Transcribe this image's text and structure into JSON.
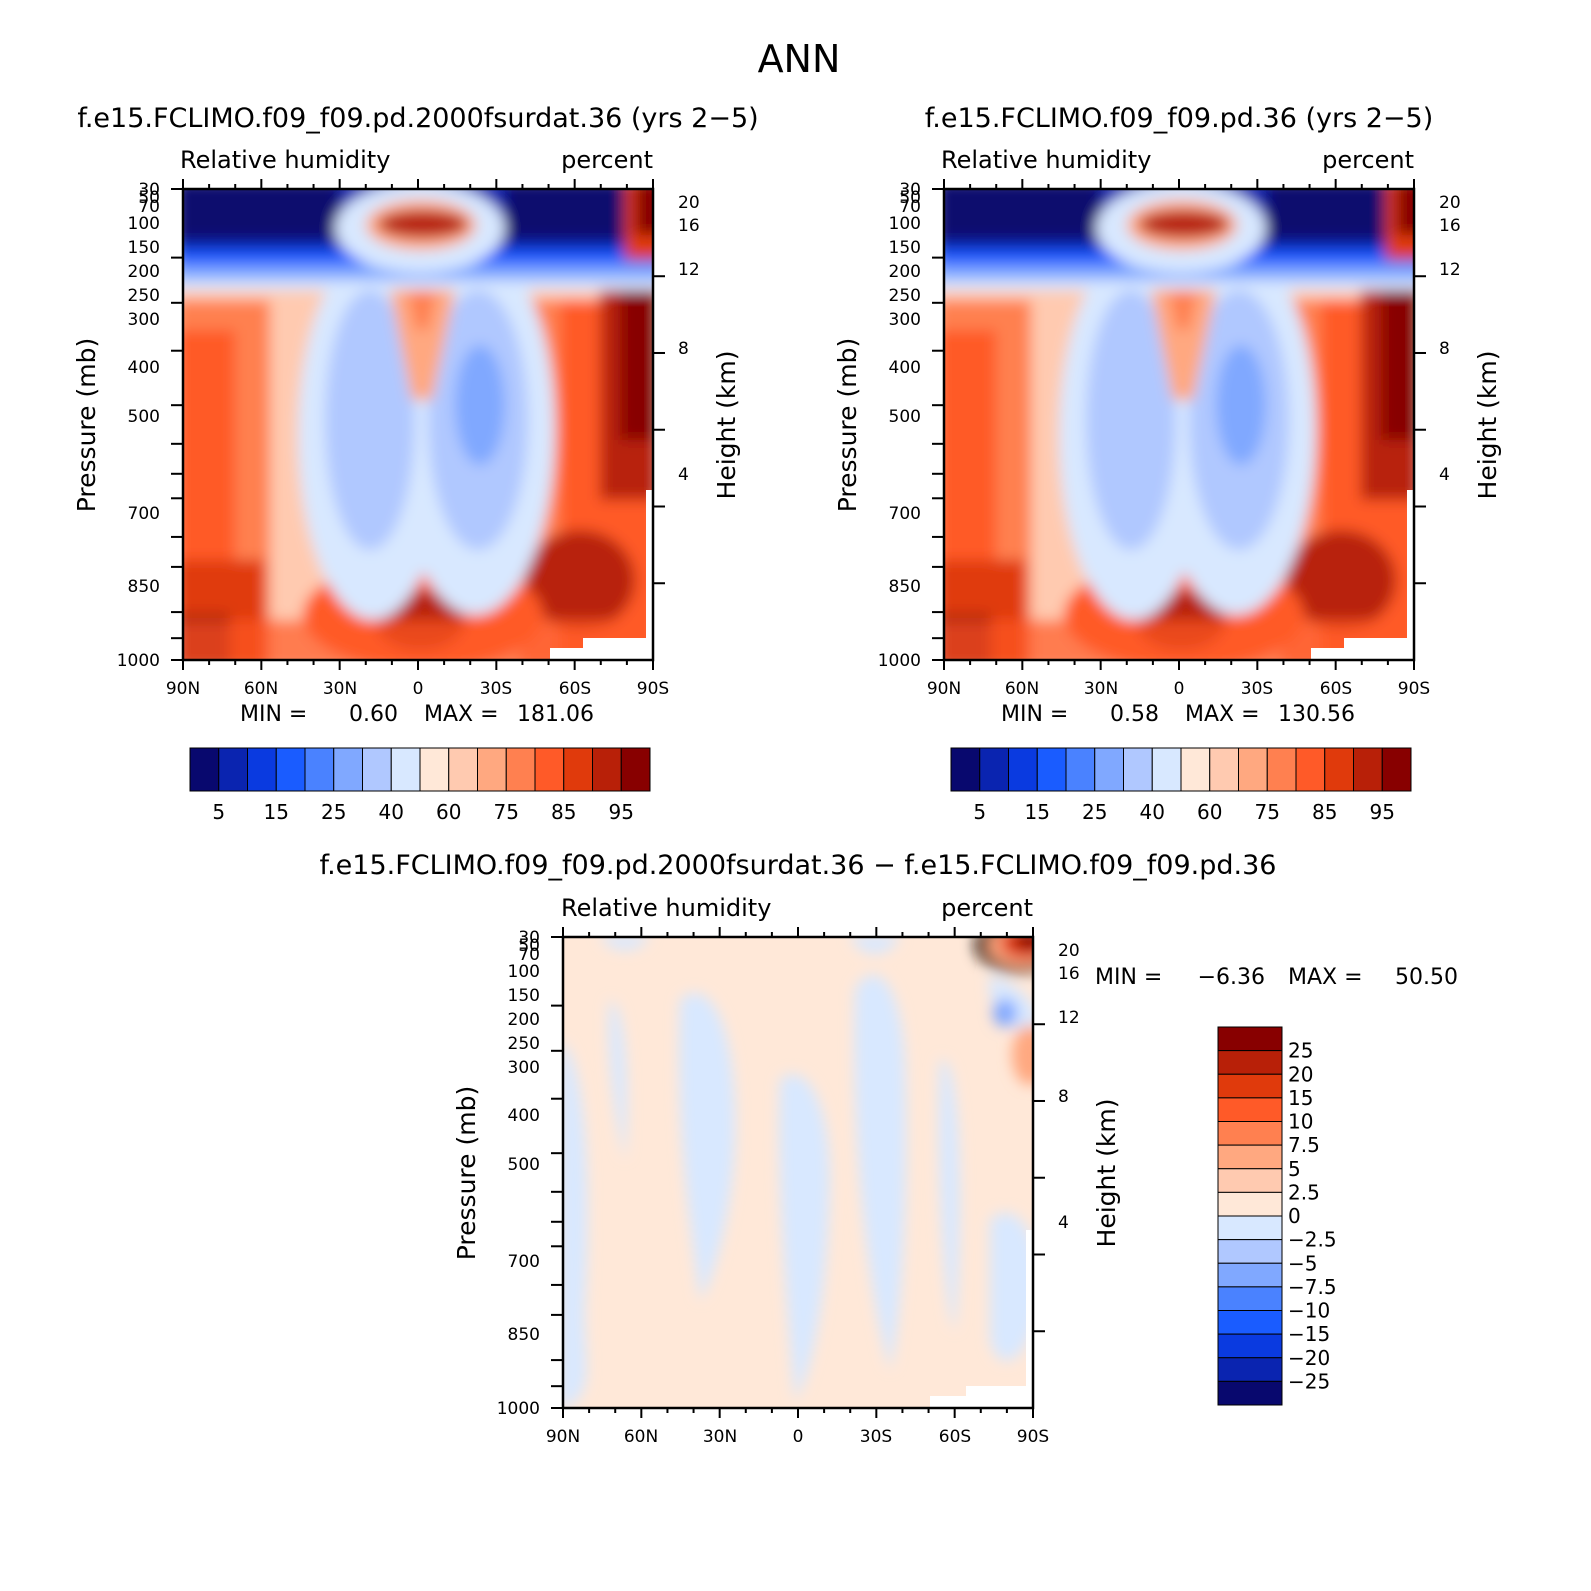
{
  "figure": {
    "title": "ANN"
  },
  "chart_data": [
    {
      "type": "heatmap",
      "panel": "top-left",
      "case": "f.e15.FCLIMO.f09_f09.pd.2000fsurdat.36 (yrs 2−5)",
      "left_label": "Relative humidity",
      "right_label": "percent",
      "ylabel": "Pressure (mb)",
      "ylabel_right": "Height (km)",
      "x_ticks": [
        "90N",
        "60N",
        "30N",
        "0",
        "30S",
        "60S",
        "90S"
      ],
      "x_range": [
        90,
        -90
      ],
      "y_ticks": [
        "30",
        "50",
        "70",
        "100",
        "150",
        "200",
        "250",
        "300",
        "400",
        "500",
        "700",
        "850",
        "1000"
      ],
      "y_range": [
        1000,
        30
      ],
      "y_scale": "log",
      "height_ticks": [
        "20",
        "16",
        "12",
        "8",
        "4"
      ],
      "min_label": "MIN =",
      "min_value": "0.60",
      "max_label": "MAX =",
      "max_value": "181.06",
      "levels": [
        "5",
        "15",
        "25",
        "40",
        "60",
        "75",
        "85",
        "95"
      ]
    },
    {
      "type": "heatmap",
      "panel": "top-right",
      "case": "f.e15.FCLIMO.f09_f09.pd.36 (yrs 2−5)",
      "left_label": "Relative humidity",
      "right_label": "percent",
      "ylabel": "Pressure (mb)",
      "ylabel_right": "Height (km)",
      "x_ticks": [
        "90N",
        "60N",
        "30N",
        "0",
        "30S",
        "60S",
        "90S"
      ],
      "x_range": [
        90,
        -90
      ],
      "y_ticks": [
        "30",
        "50",
        "70",
        "100",
        "150",
        "200",
        "250",
        "300",
        "400",
        "500",
        "700",
        "850",
        "1000"
      ],
      "y_range": [
        1000,
        30
      ],
      "y_scale": "log",
      "height_ticks": [
        "20",
        "16",
        "12",
        "8",
        "4"
      ],
      "min_label": "MIN =",
      "min_value": "0.58",
      "max_label": "MAX =",
      "max_value": "130.56",
      "levels": [
        "5",
        "15",
        "25",
        "40",
        "60",
        "75",
        "85",
        "95"
      ]
    },
    {
      "type": "heatmap",
      "panel": "bottom-difference",
      "case": "f.e15.FCLIMO.f09_f09.pd.2000fsurdat.36 − f.e15.FCLIMO.f09_f09.pd.36",
      "left_label": "Relative humidity",
      "right_label": "percent",
      "ylabel": "Pressure (mb)",
      "ylabel_right": "Height (km)",
      "x_ticks": [
        "90N",
        "60N",
        "30N",
        "0",
        "30S",
        "60S",
        "90S"
      ],
      "x_range": [
        90,
        -90
      ],
      "y_ticks": [
        "30",
        "50",
        "70",
        "100",
        "150",
        "200",
        "250",
        "300",
        "400",
        "500",
        "700",
        "850",
        "1000"
      ],
      "y_range": [
        1000,
        30
      ],
      "y_scale": "log",
      "height_ticks": [
        "20",
        "16",
        "12",
        "8",
        "4"
      ],
      "min_label": "MIN =",
      "min_value": "−6.36",
      "max_label": "MAX =",
      "max_value": "50.50",
      "levels": [
        "25",
        "20",
        "15",
        "10",
        "7.5",
        "5",
        "2.5",
        "0",
        "−2.5",
        "−5",
        "−7.5",
        "−10",
        "−15",
        "−20",
        "−25"
      ]
    }
  ],
  "colors": {
    "abs_colorbar": [
      "#08086e",
      "#0a24b0",
      "#0a3ae0",
      "#1a5cff",
      "#4a82ff",
      "#80a8ff",
      "#b0c8ff",
      "#d8e8ff",
      "#ffe8d8",
      "#ffcab0",
      "#ffa880",
      "#ff8050",
      "#ff5a28",
      "#e03a0c",
      "#b82008",
      "#880000"
    ],
    "diff_colorbar": [
      "#880000",
      "#b82008",
      "#e03a0c",
      "#ff5a28",
      "#ff8050",
      "#ffa880",
      "#ffcab0",
      "#ffe8d8",
      "#d8e8ff",
      "#b0c8ff",
      "#80a8ff",
      "#4a82ff",
      "#1a5cff",
      "#0a3ae0",
      "#0a24b0",
      "#08086e"
    ]
  }
}
